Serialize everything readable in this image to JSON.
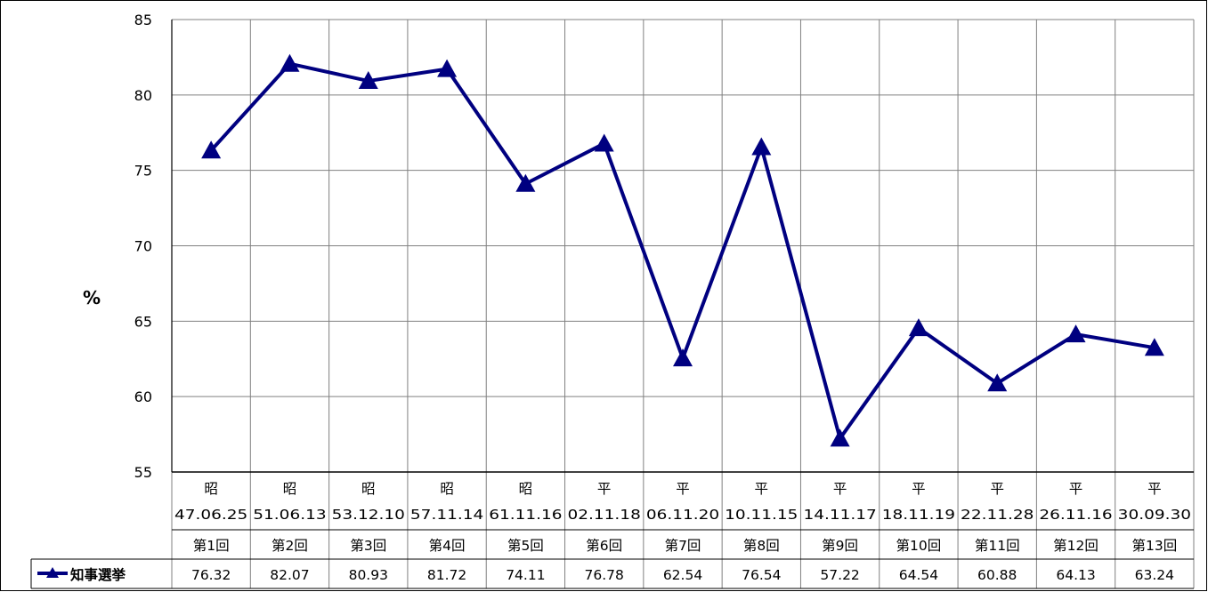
{
  "chart_data": {
    "type": "line",
    "ylabel": "%",
    "ylim": [
      55,
      85
    ],
    "yticks": [
      55,
      60,
      65,
      70,
      75,
      80,
      85
    ],
    "grid": true,
    "categories": [
      {
        "era": "昭",
        "date": "47.06.25",
        "round": "第1回"
      },
      {
        "era": "昭",
        "date": "51.06.13",
        "round": "第2回"
      },
      {
        "era": "昭",
        "date": "53.12.10",
        "round": "第3回"
      },
      {
        "era": "昭",
        "date": "57.11.14",
        "round": "第4回"
      },
      {
        "era": "昭",
        "date": "61.11.16",
        "round": "第5回"
      },
      {
        "era": "平",
        "date": "02.11.18",
        "round": "第6回"
      },
      {
        "era": "平",
        "date": "06.11.20",
        "round": "第7回"
      },
      {
        "era": "平",
        "date": "10.11.15",
        "round": "第8回"
      },
      {
        "era": "平",
        "date": "14.11.17",
        "round": "第9回"
      },
      {
        "era": "平",
        "date": "18.11.19",
        "round": "第10回"
      },
      {
        "era": "平",
        "date": "22.11.28",
        "round": "第11回"
      },
      {
        "era": "平",
        "date": "26.11.16",
        "round": "第12回"
      },
      {
        "era": "平",
        "date": "30.09.30",
        "round": "第13回"
      }
    ],
    "series": [
      {
        "name": "知事選挙",
        "color": "#000080",
        "marker": "triangle",
        "values": [
          76.32,
          82.07,
          80.93,
          81.72,
          74.11,
          76.78,
          62.54,
          76.54,
          57.22,
          64.54,
          60.88,
          64.13,
          63.24
        ],
        "value_labels": [
          "76.32",
          "82.07",
          "80.93",
          "81.72",
          "74.11",
          "76.78",
          "62.54",
          "76.54",
          "57.22",
          "64.54",
          "60.88",
          "64.13",
          "63.24"
        ]
      }
    ]
  }
}
